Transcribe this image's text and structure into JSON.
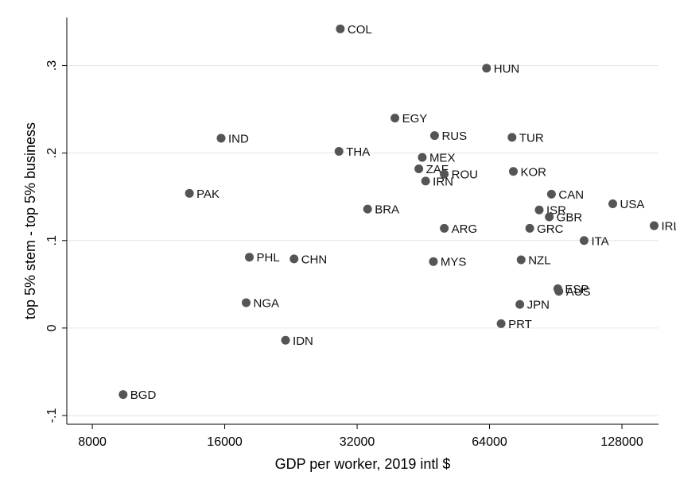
{
  "chart_data": {
    "type": "scatter",
    "title": "",
    "xlabel": "GDP per worker, 2019 intl $",
    "ylabel": "top 5% stem - top 5% business",
    "x_scale": "log2",
    "xlim": [
      7000,
      155000
    ],
    "ylim": [
      -0.11,
      0.355
    ],
    "x_ticks": [
      {
        "value": 8000,
        "label": "8000"
      },
      {
        "value": 16000,
        "label": "16000"
      },
      {
        "value": 32000,
        "label": "32000"
      },
      {
        "value": 64000,
        "label": "64000"
      },
      {
        "value": 128000,
        "label": "128000"
      }
    ],
    "y_ticks": [
      {
        "value": -0.1,
        "label": "-.1"
      },
      {
        "value": 0,
        "label": "0"
      },
      {
        "value": 0.1,
        "label": ".1"
      },
      {
        "value": 0.2,
        "label": ".2"
      },
      {
        "value": 0.3,
        "label": ".3"
      }
    ],
    "grid": true,
    "colors": {
      "background": "#ffffff",
      "plot_background": "#ffffff",
      "marker": "#555555",
      "grid": "#e6e6e6",
      "axis": "#000000"
    },
    "points": [
      {
        "label": "COL",
        "x": 29300,
        "y": 0.342
      },
      {
        "label": "HUN",
        "x": 63000,
        "y": 0.297
      },
      {
        "label": "EGY",
        "x": 39000,
        "y": 0.24
      },
      {
        "label": "RUS",
        "x": 48000,
        "y": 0.22
      },
      {
        "label": "TUR",
        "x": 72000,
        "y": 0.218
      },
      {
        "label": "IND",
        "x": 15700,
        "y": 0.217
      },
      {
        "label": "THA",
        "x": 29100,
        "y": 0.202
      },
      {
        "label": "MEX",
        "x": 45000,
        "y": 0.195
      },
      {
        "label": "ZAF",
        "x": 44200,
        "y": 0.182
      },
      {
        "label": "ROU",
        "x": 50500,
        "y": 0.176
      },
      {
        "label": "KOR",
        "x": 72500,
        "y": 0.179
      },
      {
        "label": "IRN",
        "x": 45800,
        "y": 0.168
      },
      {
        "label": "PAK",
        "x": 13300,
        "y": 0.154
      },
      {
        "label": "CAN",
        "x": 88500,
        "y": 0.153
      },
      {
        "label": "USA",
        "x": 122000,
        "y": 0.142
      },
      {
        "label": "BRA",
        "x": 33800,
        "y": 0.136
      },
      {
        "label": "ISR",
        "x": 83000,
        "y": 0.135
      },
      {
        "label": "GBR",
        "x": 87500,
        "y": 0.127
      },
      {
        "label": "IRL",
        "x": 151500,
        "y": 0.117
      },
      {
        "label": "ARG",
        "x": 50500,
        "y": 0.114
      },
      {
        "label": "GRC",
        "x": 79000,
        "y": 0.114
      },
      {
        "label": "ITA",
        "x": 105000,
        "y": 0.1
      },
      {
        "label": "PHL",
        "x": 18200,
        "y": 0.081
      },
      {
        "label": "CHN",
        "x": 23000,
        "y": 0.079
      },
      {
        "label": "MYS",
        "x": 47700,
        "y": 0.076
      },
      {
        "label": "NZL",
        "x": 75500,
        "y": 0.078
      },
      {
        "label": "ESP",
        "x": 91500,
        "y": 0.045
      },
      {
        "label": "AUS",
        "x": 92000,
        "y": 0.042
      },
      {
        "label": "NGA",
        "x": 17900,
        "y": 0.029
      },
      {
        "label": "JPN",
        "x": 75000,
        "y": 0.027
      },
      {
        "label": "PRT",
        "x": 68000,
        "y": 0.005
      },
      {
        "label": "IDN",
        "x": 22000,
        "y": -0.014
      },
      {
        "label": "BGD",
        "x": 9400,
        "y": -0.076
      }
    ]
  }
}
